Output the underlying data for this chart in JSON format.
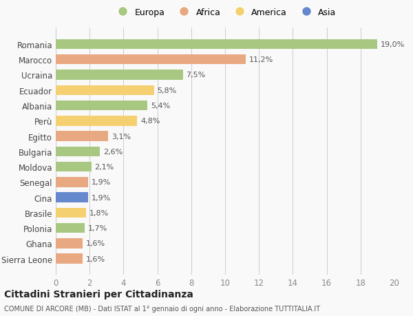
{
  "categories": [
    "Sierra Leone",
    "Ghana",
    "Polonia",
    "Brasile",
    "Cina",
    "Senegal",
    "Moldova",
    "Bulgaria",
    "Egitto",
    "Perù",
    "Albania",
    "Ecuador",
    "Ucraina",
    "Marocco",
    "Romania"
  ],
  "values": [
    1.6,
    1.6,
    1.7,
    1.8,
    1.9,
    1.9,
    2.1,
    2.6,
    3.1,
    4.8,
    5.4,
    5.8,
    7.5,
    11.2,
    19.0
  ],
  "colors": [
    "#E8A882",
    "#E8A882",
    "#A8C882",
    "#F5D070",
    "#6688CC",
    "#E8A882",
    "#A8C882",
    "#A8C882",
    "#E8A882",
    "#F5D070",
    "#A8C882",
    "#F5D070",
    "#A8C882",
    "#E8A882",
    "#A8C882"
  ],
  "labels": [
    "1,6%",
    "1,6%",
    "1,7%",
    "1,8%",
    "1,9%",
    "1,9%",
    "2,1%",
    "2,6%",
    "3,1%",
    "4,8%",
    "5,4%",
    "5,8%",
    "7,5%",
    "11,2%",
    "19,0%"
  ],
  "legend": [
    {
      "label": "Europa",
      "color": "#A8C882"
    },
    {
      "label": "Africa",
      "color": "#E8A882"
    },
    {
      "label": "America",
      "color": "#F5D070"
    },
    {
      "label": "Asia",
      "color": "#6688CC"
    }
  ],
  "title": "Cittadini Stranieri per Cittadinanza",
  "subtitle": "COMUNE DI ARCORE (MB) - Dati ISTAT al 1° gennaio di ogni anno - Elaborazione TUTTITALIA.IT",
  "xlim": [
    0,
    20
  ],
  "xticks": [
    0,
    2,
    4,
    6,
    8,
    10,
    12,
    14,
    16,
    18,
    20
  ],
  "background_color": "#f9f9f9",
  "grid_color": "#cccccc"
}
